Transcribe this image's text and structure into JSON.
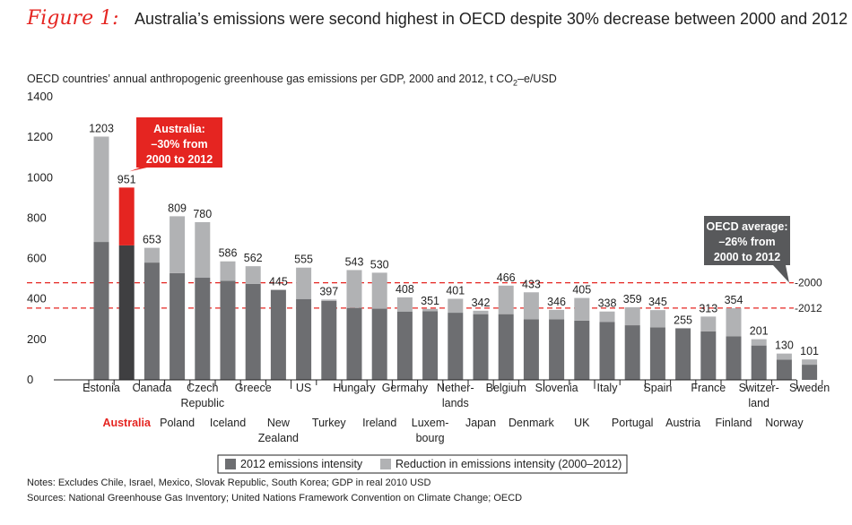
{
  "header": {
    "figure_label": "Figure 1:",
    "title": "Australia’s emissions were second highest in OECD despite 30% decrease between 2000 and 2012"
  },
  "subtitle": {
    "before": "OECD countries’ annual anthropogenic greenhouse gas emissions per GDP, 2000 and 2012, t CO",
    "sub": "2",
    "after": "–e/USD"
  },
  "chart_data": {
    "type": "bar",
    "stacked": true,
    "ylim": [
      0,
      1400
    ],
    "yticks": [
      0,
      200,
      400,
      600,
      800,
      1000,
      1200,
      1400
    ],
    "categories": [
      "Estonia",
      "Australia",
      "Canada",
      "Poland",
      "Czech Republic",
      "Iceland",
      "Greece",
      "New Zealand",
      "US",
      "Turkey",
      "Hungary",
      "Ireland",
      "Germany",
      "Luxembourg",
      "Netherlands",
      "Japan",
      "Belgium",
      "Denmark",
      "Slovenia",
      "UK",
      "Italy",
      "Portugal",
      "Spain",
      "Austria",
      "France",
      "Finland",
      "Switzerland",
      "Norway",
      "Sweden"
    ],
    "category_lines": [
      [
        "Estonia"
      ],
      [
        "Australia"
      ],
      [
        "Canada"
      ],
      [
        "Poland"
      ],
      [
        "Czech",
        "Republic"
      ],
      [
        "Iceland"
      ],
      [
        "Greece"
      ],
      [
        "New",
        "Zealand"
      ],
      [
        "US"
      ],
      [
        "Turkey"
      ],
      [
        "Hungary"
      ],
      [
        "Ireland"
      ],
      [
        "Germany"
      ],
      [
        "Luxem-",
        "bourg"
      ],
      [
        "Nether-",
        "lands"
      ],
      [
        "Japan"
      ],
      [
        "Belgium"
      ],
      [
        "Denmark"
      ],
      [
        "Slovenia"
      ],
      [
        "UK"
      ],
      [
        "Italy"
      ],
      [
        "Portugal"
      ],
      [
        "Spain"
      ],
      [
        "Austria"
      ],
      [
        "France"
      ],
      [
        "Finland"
      ],
      [
        "Switzer-",
        "land"
      ],
      [
        "Norway"
      ],
      [
        "Sweden"
      ]
    ],
    "series": [
      {
        "name": "2012 emissions intensity",
        "color": "#6d6e71",
        "values": [
          682,
          665,
          580,
          528,
          505,
          490,
          475,
          445,
          400,
          390,
          356,
          352,
          338,
          340,
          332,
          325,
          325,
          300,
          300,
          293,
          287,
          270,
          260,
          255,
          240,
          215,
          170,
          100,
          75
        ]
      },
      {
        "name": "Reduction in emissions intensity (2000–2012)",
        "color": "#b1b2b4",
        "values": [
          521,
          286,
          73,
          281,
          275,
          96,
          87,
          0,
          155,
          7,
          187,
          178,
          70,
          11,
          69,
          17,
          141,
          133,
          46,
          112,
          51,
          89,
          85,
          0,
          73,
          139,
          31,
          30,
          26
        ]
      }
    ],
    "totals": [
      1203,
      951,
      653,
      809,
      780,
      586,
      562,
      445,
      555,
      397,
      543,
      530,
      408,
      351,
      401,
      342,
      466,
      433,
      346,
      405,
      338,
      359,
      345,
      255,
      313,
      354,
      201,
      130,
      101
    ],
    "highlight": {
      "category": "Australia",
      "color": "#e52521"
    },
    "reference_lines": [
      {
        "label": "2000",
        "value": 480,
        "color": "#e52521"
      },
      {
        "label": "2012",
        "value": 355,
        "color": "#e52521"
      }
    ],
    "annotations": [
      {
        "id": "australia",
        "lines": [
          "Australia:",
          "–30% from",
          "2000 to 2012"
        ],
        "color": "#e52521"
      },
      {
        "id": "oecd",
        "lines": [
          "OECD average:",
          "–26% from",
          "2000 to 2012"
        ],
        "color": "#58595b"
      }
    ],
    "legend": {
      "placement": "bottom-center"
    }
  },
  "footer": {
    "notes": "Notes: Excludes Chile, Israel, Mexico, Slovak Republic, South Korea; GDP in real 2010 USD",
    "sources": "Sources: National Greenhouse Gas Inventory; United Nations Framework Convention on Climate Change; OECD"
  }
}
